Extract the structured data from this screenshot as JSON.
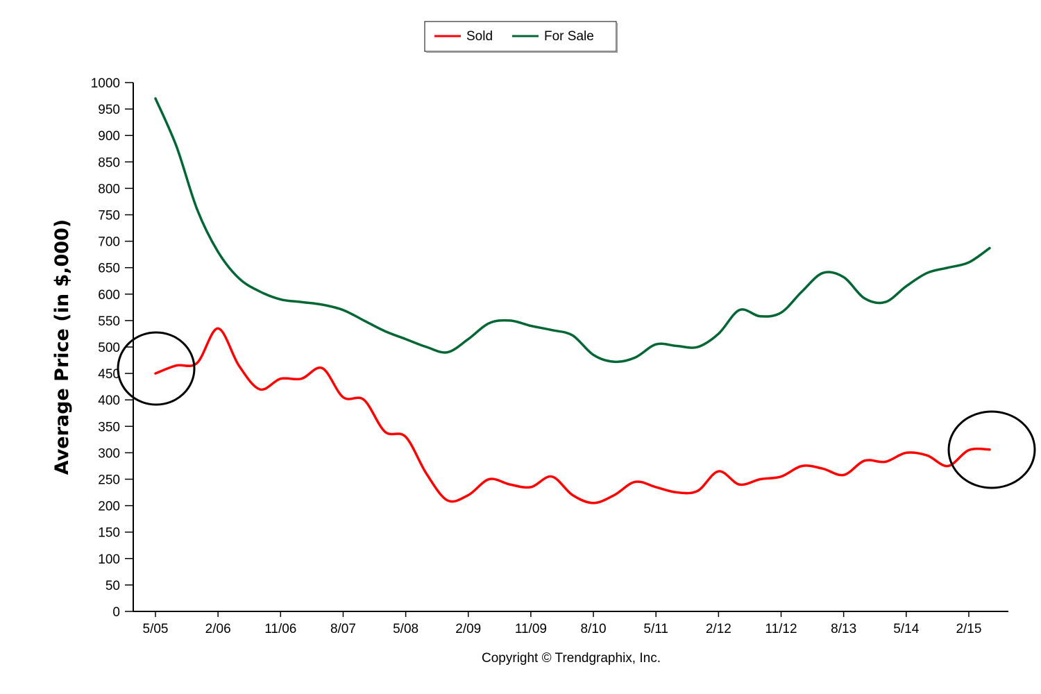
{
  "chart_data": {
    "type": "line",
    "ylabel": "Average Price (in $,000)",
    "xlabel": "",
    "ylim": [
      0,
      1000
    ],
    "yticks": [
      0,
      50,
      100,
      150,
      200,
      250,
      300,
      350,
      400,
      450,
      500,
      550,
      600,
      650,
      700,
      750,
      800,
      850,
      900,
      950,
      1000
    ],
    "categories": [
      "5/05",
      "2/06",
      "11/06",
      "8/07",
      "5/08",
      "2/09",
      "11/09",
      "8/10",
      "5/11",
      "2/12",
      "11/12",
      "8/13",
      "5/14",
      "2/15"
    ],
    "x": [
      "5/05",
      "8/05",
      "11/05",
      "2/06",
      "5/06",
      "8/06",
      "11/06",
      "2/07",
      "5/07",
      "8/07",
      "11/07",
      "2/08",
      "5/08",
      "8/08",
      "11/08",
      "2/09",
      "5/09",
      "8/09",
      "11/09",
      "2/10",
      "5/10",
      "8/10",
      "11/10",
      "2/11",
      "5/11",
      "8/11",
      "11/11",
      "2/12",
      "5/12",
      "8/12",
      "11/12",
      "2/13",
      "5/13",
      "8/13",
      "11/13",
      "2/14",
      "5/14",
      "8/14",
      "11/14",
      "2/15",
      "5/15"
    ],
    "legend_position": "top-center",
    "grid": false,
    "series": [
      {
        "name": "Sold",
        "color": "#ff0000",
        "values": [
          450,
          465,
          470,
          535,
          465,
          420,
          440,
          440,
          460,
          405,
          400,
          340,
          330,
          260,
          210,
          220,
          250,
          240,
          235,
          255,
          220,
          205,
          220,
          245,
          235,
          225,
          228,
          265,
          240,
          250,
          255,
          275,
          270,
          258,
          285,
          283,
          300,
          295,
          275,
          305,
          306
        ]
      },
      {
        "name": "For Sale",
        "color": "#006633",
        "values": [
          970,
          880,
          760,
          680,
          630,
          605,
          590,
          585,
          580,
          570,
          550,
          530,
          515,
          500,
          490,
          515,
          545,
          550,
          540,
          532,
          522,
          485,
          472,
          480,
          505,
          502,
          500,
          525,
          570,
          558,
          565,
          605,
          640,
          632,
          592,
          585,
          615,
          640,
          650,
          660,
          687
        ]
      }
    ]
  },
  "legend": {
    "sold_label": "Sold",
    "forsale_label": "For Sale"
  },
  "copyright": "Copyright © Trendgraphix, Inc."
}
